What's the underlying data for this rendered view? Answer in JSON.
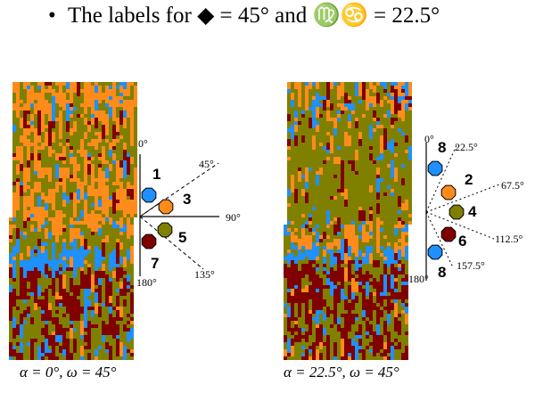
{
  "title": {
    "bullet": "•",
    "text": "The labels for ◆ = 45° and ♍♋ = 22.5°"
  },
  "colors": {
    "orange": "#ff8c1a",
    "olive": "#808000",
    "blue": "#1e90ff",
    "maroon": "#800000"
  },
  "panels": [
    {
      "caption": "α = 0°, ω = 45°",
      "angles": [
        {
          "label": "0°"
        },
        {
          "label": "45°"
        },
        {
          "label": "90°"
        },
        {
          "label": "135°"
        },
        {
          "label": "180°"
        }
      ],
      "bins": [
        {
          "number": "1",
          "color": "blue"
        },
        {
          "number": "3",
          "color": "orange"
        },
        {
          "number": "5",
          "color": "olive"
        },
        {
          "number": "7",
          "color": "maroon"
        }
      ]
    },
    {
      "caption": "α = 22.5°, ω = 45°",
      "angles": [
        {
          "label": "0°"
        },
        {
          "label": "22.5°"
        },
        {
          "label": "67.5°"
        },
        {
          "label": "112.5°"
        },
        {
          "label": "157.5°"
        },
        {
          "label": "180°"
        }
      ],
      "bins": [
        {
          "number": "8",
          "color": "blue"
        },
        {
          "number": "2",
          "color": "orange"
        },
        {
          "number": "4",
          "color": "olive"
        },
        {
          "number": "6",
          "color": "maroon"
        },
        {
          "number": "8",
          "color": "blue"
        }
      ]
    }
  ]
}
